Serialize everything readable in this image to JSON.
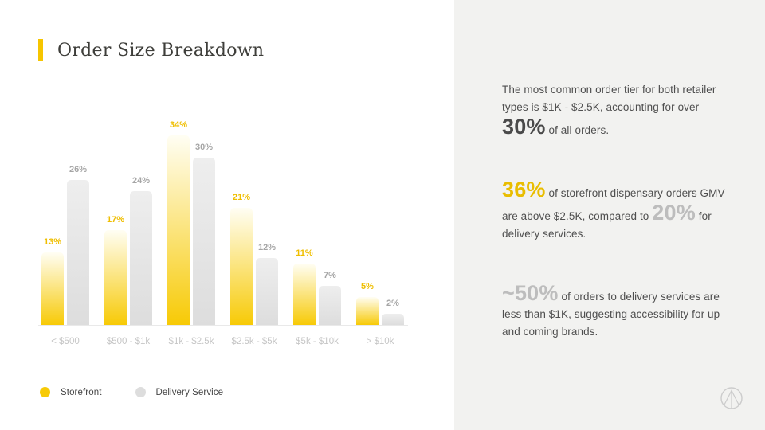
{
  "slide": {
    "title": "Order Size Breakdown",
    "accent_color": "#F6C500",
    "panel_bg": "#F2F2F0"
  },
  "chart_data": {
    "type": "bar",
    "title": "Order Size Breakdown",
    "categories": [
      "< $500",
      "$500 - $1k",
      "$1k - $2.5k",
      "$2.5k - $5k",
      "$5k - $10k",
      "> $10k"
    ],
    "series": [
      {
        "name": "Storefront",
        "values": [
          13,
          17,
          34,
          21,
          11,
          5
        ],
        "color": "#F7CA06",
        "color_light": "#FFFEF4",
        "label_color": "#EFBE00"
      },
      {
        "name": "Delivery Service",
        "values": [
          26,
          24,
          30,
          12,
          7,
          2
        ],
        "color": "#DDDDDD",
        "color_light": "#EEEEEE",
        "label_color": "#A5A5A5"
      }
    ],
    "value_suffix": "%",
    "xlabel": "",
    "ylabel": "",
    "ylim": [
      0,
      36
    ],
    "grid": false,
    "bar_labels": "above-each-bar",
    "legend_position": "bottom-left"
  },
  "insights": [
    {
      "segments": [
        {
          "text": "The most common order tier for both retailer types is $1K - $2.5K, accounting for over ",
          "style": "normal"
        },
        {
          "text": "30%",
          "style": "big-dark"
        },
        {
          "text": " of all orders.",
          "style": "normal"
        }
      ]
    },
    {
      "segments": [
        {
          "text": "36%",
          "style": "big-yellow"
        },
        {
          "text": " of storefront dispensary orders GMV are above $2.5K, compared to ",
          "style": "normal"
        },
        {
          "text": "20%",
          "style": "big-gray"
        },
        {
          "text": " for delivery services.",
          "style": "normal"
        }
      ]
    },
    {
      "segments": [
        {
          "text": "~50%",
          "style": "big-gray"
        },
        {
          "text": " of orders to delivery services are less than $1K, suggesting accessibility for up and coming brands.",
          "style": "normal"
        }
      ]
    }
  ],
  "footer": {
    "logo_icon": "arrow-up-circle",
    "logo_color": "#CCCCCC"
  }
}
